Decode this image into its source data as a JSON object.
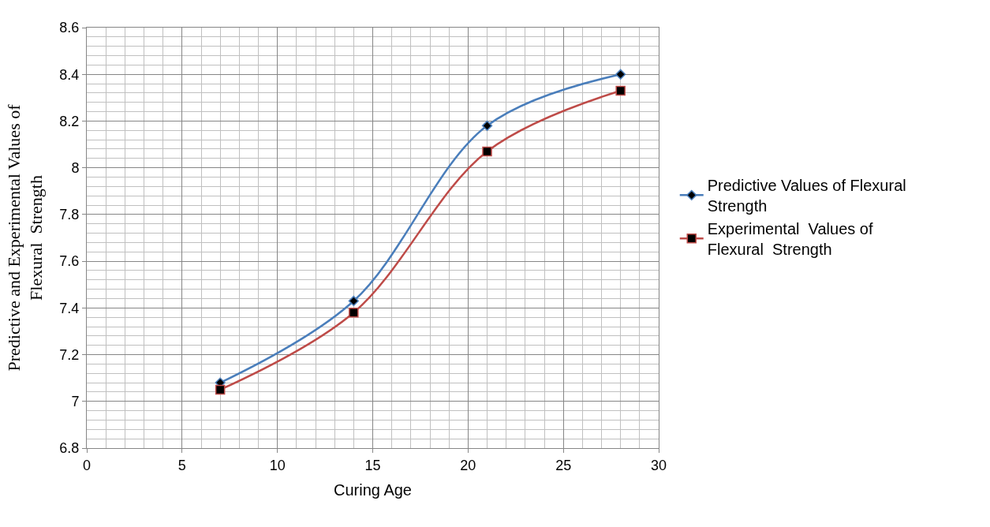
{
  "chart_data": {
    "type": "line",
    "xlabel": "Curing Age",
    "ylabel": "Predictive and Experimental Values of Flexural  Strength",
    "x": [
      7,
      14,
      21,
      28
    ],
    "series": [
      {
        "name": "Predictive Values of Flexural Strength",
        "color": "#4a7ebb",
        "values": [
          7.08,
          7.43,
          8.18,
          8.4
        ],
        "marker": "diamond"
      },
      {
        "name": "Experimental  Values of Flexural  Strength",
        "color": "#be4b48",
        "values": [
          7.05,
          7.38,
          8.07,
          8.33
        ],
        "marker": "square"
      }
    ],
    "xlim": [
      0,
      30
    ],
    "xticks": [
      0,
      5,
      10,
      15,
      20,
      25,
      30
    ],
    "ylim": [
      6.8,
      8.6
    ],
    "yticks": [
      {
        "value": 6.8,
        "label": "6.8"
      },
      7,
      {
        "value": 7.2,
        "label": "7.2"
      },
      {
        "value": 7.4,
        "label": "7.4"
      },
      {
        "value": 7.6,
        "label": "7.6"
      },
      {
        "value": 7.8,
        "label": "7.8"
      },
      8,
      {
        "value": 8.2,
        "label": "8.2"
      },
      {
        "value": 8.4,
        "label": "8.4"
      },
      {
        "value": 8.6,
        "label": "8.6"
      }
    ],
    "grid": true,
    "legend": "right",
    "line_style": "solid"
  }
}
